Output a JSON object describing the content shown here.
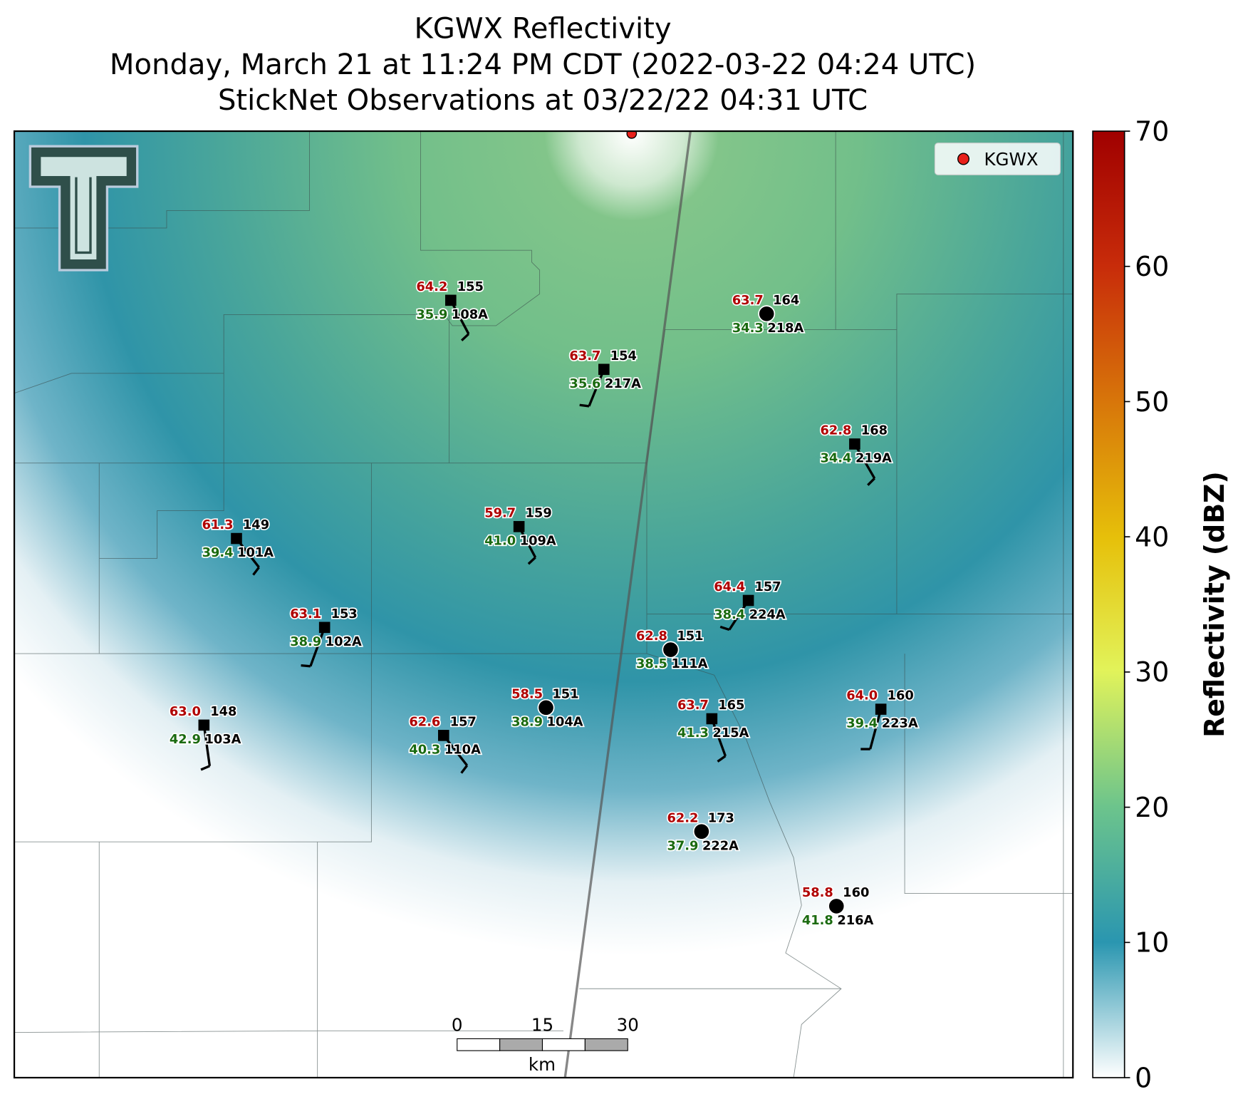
{
  "title": [
    "KGWX Reflectivity",
    "Monday, March 21 at 11:24 PM CDT (2022-03-22 04:24 UTC)",
    "StickNet Observations at 03/22/22 04:31 UTC"
  ],
  "legend": "KGWX",
  "colorbar": {
    "label": "Reflectivity (dBZ)",
    "lim": [
      0,
      70
    ],
    "ticks": [
      0,
      10,
      20,
      30,
      40,
      50,
      60,
      70
    ]
  },
  "scale_bar": {
    "lim": [
      0,
      30
    ],
    "ticks": [
      0,
      15,
      30
    ],
    "unit": "km"
  },
  "stations": [
    {
      "id": "108A",
      "temperature": "64.2",
      "dewpoint": "35.9",
      "pressure": 155
    },
    {
      "id": "217A",
      "temperature": "63.7",
      "dewpoint": "35.6",
      "pressure": 154
    },
    {
      "id": "218A",
      "temperature": "63.7",
      "dewpoint": "34.3",
      "pressure": 164
    },
    {
      "id": "219A",
      "temperature": "62.8",
      "dewpoint": "34.4",
      "pressure": 168
    },
    {
      "id": "109A",
      "temperature": "59.7",
      "dewpoint": "41.0",
      "pressure": 159
    },
    {
      "id": "101A",
      "temperature": "61.3",
      "dewpoint": "39.4",
      "pressure": 149
    },
    {
      "id": "224A",
      "temperature": "64.4",
      "dewpoint": "38.4",
      "pressure": 157
    },
    {
      "id": "102A",
      "temperature": "63.1",
      "dewpoint": "38.9",
      "pressure": 153
    },
    {
      "id": "111A",
      "temperature": "62.8",
      "dewpoint": "38.5",
      "pressure": 151
    },
    {
      "id": "104A",
      "temperature": "58.5",
      "dewpoint": "38.9",
      "pressure": 151
    },
    {
      "id": "215A",
      "temperature": "63.7",
      "dewpoint": "41.3",
      "pressure": 165
    },
    {
      "id": "223A",
      "temperature": "64.0",
      "dewpoint": "39.4",
      "pressure": 160
    },
    {
      "id": "103A",
      "temperature": "63.0",
      "dewpoint": "42.9",
      "pressure": 148
    },
    {
      "id": "110A",
      "temperature": "62.6",
      "dewpoint": "40.3",
      "pressure": 157
    },
    {
      "id": "222A",
      "temperature": "62.2",
      "dewpoint": "37.9",
      "pressure": 173
    },
    {
      "id": "216A",
      "temperature": "58.8",
      "dewpoint": "41.8",
      "pressure": 160
    }
  ]
}
